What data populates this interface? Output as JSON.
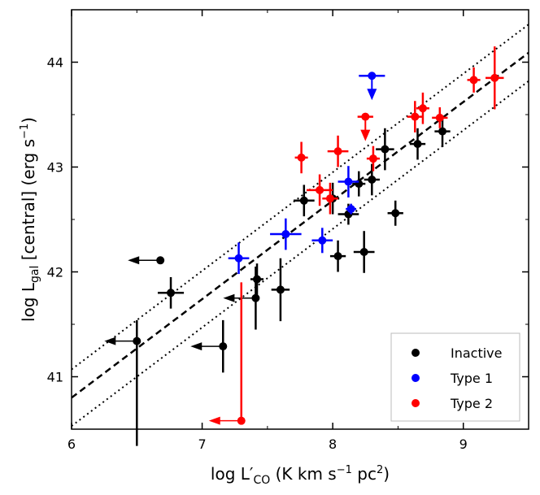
{
  "chart_data": {
    "type": "scatter",
    "xlabel_main": "log L′",
    "xlabel_sub": "CO",
    "xlabel_units": " (K km s",
    "xlabel_exp1": "−1",
    "xlabel_units2": " pc",
    "xlabel_exp2": "2",
    "xlabel_close": ")",
    "ylabel_main": "log L",
    "ylabel_sub": "gal",
    "ylabel_units": " [central] (erg s",
    "ylabel_exp": "−1",
    "ylabel_close": ")",
    "xlim": [
      6,
      9.5
    ],
    "ylim": [
      40.5,
      44.5
    ],
    "xticks": [
      6,
      7,
      8,
      9
    ],
    "yticks": [
      41,
      42,
      43,
      44
    ],
    "legend_position": "bottom-right",
    "fit_line": {
      "slope": 0.94,
      "intercept": 35.16,
      "scatter": 0.27
    },
    "series": [
      {
        "name": "Inactive",
        "color": "#000000",
        "points": [
          {
            "x": 6.68,
            "y": 42.11,
            "upper_x": true
          },
          {
            "x": 6.76,
            "y": 41.8,
            "xerr": 0.1,
            "yerr": 0.15
          },
          {
            "x": 6.5,
            "y": 41.34,
            "upper_x": true,
            "yerr_lo": 1.0,
            "yerr_hi": 0.2
          },
          {
            "x": 7.16,
            "y": 41.29,
            "upper_x": true,
            "yerr": 0.25
          },
          {
            "x": 7.42,
            "y": 41.93,
            "xerr": 0.05,
            "yerr": 0.15
          },
          {
            "x": 7.41,
            "y": 41.75,
            "upper_x": true,
            "yerr": 0.3
          },
          {
            "x": 7.6,
            "y": 41.83,
            "xerr": 0.07,
            "yerr": 0.3
          },
          {
            "x": 7.78,
            "y": 42.68,
            "xerr": 0.08,
            "yerr": 0.15
          },
          {
            "x": 8.0,
            "y": 42.7,
            "xerr": 0.05,
            "yerr": 0.15
          },
          {
            "x": 8.04,
            "y": 42.15,
            "xerr": 0.06,
            "yerr": 0.15
          },
          {
            "x": 8.12,
            "y": 42.55,
            "xerr": 0.08,
            "yerr": 0.1
          },
          {
            "x": 8.2,
            "y": 42.84,
            "xerr": 0.05,
            "yerr": 0.12
          },
          {
            "x": 8.24,
            "y": 42.19,
            "xerr": 0.08,
            "yerr": 0.2
          },
          {
            "x": 8.3,
            "y": 42.88,
            "xerr": 0.06,
            "yerr": 0.15
          },
          {
            "x": 8.4,
            "y": 43.17,
            "xerr": 0.07,
            "yerr": 0.2
          },
          {
            "x": 8.48,
            "y": 42.56,
            "xerr": 0.06,
            "yerr": 0.12
          },
          {
            "x": 8.65,
            "y": 43.22,
            "xerr": 0.06,
            "yerr": 0.15
          },
          {
            "x": 8.84,
            "y": 43.34,
            "xerr": 0.06,
            "yerr": 0.15
          }
        ]
      },
      {
        "name": "Type 1",
        "color": "#0000ff",
        "points": [
          {
            "x": 7.28,
            "y": 42.13,
            "xerr": 0.08,
            "yerr": 0.15
          },
          {
            "x": 7.64,
            "y": 42.36,
            "xerr": 0.12,
            "yerr": 0.15
          },
          {
            "x": 7.92,
            "y": 42.3,
            "xerr": 0.08,
            "yerr": 0.12
          },
          {
            "x": 8.12,
            "y": 42.86,
            "xerr": 0.08,
            "yerr": 0.15
          },
          {
            "x": 8.14,
            "y": 42.6,
            "xerr": 0.04,
            "yerr": 0.05
          },
          {
            "x": 8.3,
            "y": 43.87,
            "upper_y": true,
            "xerr": 0.1
          }
        ]
      },
      {
        "name": "Type 2",
        "color": "#ff0000",
        "points": [
          {
            "x": 7.3,
            "y": 40.58,
            "upper_x": true,
            "yerr_lo": 0,
            "yerr_hi": 1.32
          },
          {
            "x": 7.76,
            "y": 43.09,
            "xerr": 0.05,
            "yerr": 0.15
          },
          {
            "x": 7.9,
            "y": 42.78,
            "xerr": 0.1,
            "yerr": 0.15
          },
          {
            "x": 7.98,
            "y": 42.7,
            "xerr": 0.06,
            "yerr": 0.15
          },
          {
            "x": 8.04,
            "y": 43.15,
            "xerr": 0.08,
            "yerr": 0.15
          },
          {
            "x": 8.25,
            "y": 43.48,
            "upper_y": true,
            "xerr": 0.06
          },
          {
            "x": 8.31,
            "y": 43.08,
            "xerr": 0.05,
            "yerr": 0.12
          },
          {
            "x": 8.63,
            "y": 43.48,
            "xerr": 0.06,
            "yerr": 0.15
          },
          {
            "x": 8.69,
            "y": 43.56,
            "xerr": 0.05,
            "yerr": 0.15
          },
          {
            "x": 8.82,
            "y": 43.47,
            "xerr": 0.06,
            "yerr": 0.1
          },
          {
            "x": 9.08,
            "y": 43.83,
            "xerr": 0.05,
            "yerr": 0.12
          },
          {
            "x": 9.24,
            "y": 43.85,
            "xerr": 0.07,
            "yerr": 0.3
          }
        ]
      }
    ]
  }
}
